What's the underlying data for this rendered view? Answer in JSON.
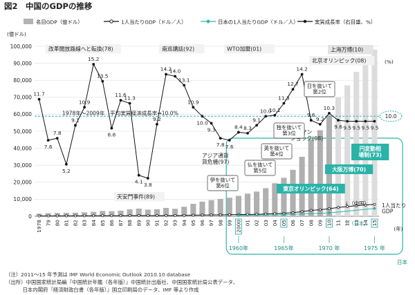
{
  "figure": {
    "label": "図2",
    "title": "中国のGDPの推移"
  },
  "legend": {
    "bar": "名目GDP（億ドル）",
    "per_capita_china": "1人当たりGDP（ドル／人）",
    "per_capita_japan": "日本の1人当たりGDP（ドル／人）",
    "growth": "実質成長率（右目盛、%）"
  },
  "chart_data": {
    "type": "bar+line",
    "x_years": [
      "1978",
      "79",
      "80",
      "81",
      "82",
      "83",
      "84",
      "85",
      "86",
      "87",
      "88",
      "89",
      "90",
      "91",
      "92",
      "93",
      "94",
      "95",
      "96",
      "97",
      "98",
      "99",
      "2000",
      "01",
      "02",
      "03",
      "04",
      "05",
      "06",
      "07",
      "08",
      "09",
      "10",
      "11",
      "12",
      "13",
      "14",
      "15"
    ],
    "y_left": {
      "label": "(億ドル)",
      "min": 0,
      "max": 100000,
      "ticks": [
        0,
        10000,
        20000,
        30000,
        40000,
        50000,
        60000,
        70000,
        80000,
        90000,
        100000
      ],
      "tick_labels": [
        "0",
        "10,000",
        "20,000",
        "30,000",
        "40,000",
        "50,000",
        "60,000",
        "70,000",
        "80,000",
        "90,000",
        "100,000"
      ]
    },
    "y_right": {
      "label": "(%)",
      "min": 0,
      "max": 17
    },
    "x_axis_unit": "(年)",
    "series": [
      {
        "name": "名目GDP（億ドル）",
        "kind": "bar",
        "values": [
          1500,
          1800,
          1900,
          2000,
          2050,
          2300,
          2600,
          3100,
          2980,
          3250,
          4050,
          4500,
          3900,
          4100,
          4900,
          4400,
          5600,
          7300,
          8600,
          9500,
          10200,
          10900,
          12000,
          13300,
          14500,
          16500,
          19400,
          22600,
          27300,
          35000,
          45200,
          50600,
          59300,
          70000,
          77000,
          85000,
          91000,
          98000
        ]
      },
      {
        "name": "1人当たりGDP（ドル／人）",
        "kind": "line",
        "values": [
          160,
          180,
          200,
          200,
          210,
          230,
          260,
          300,
          290,
          310,
          370,
          410,
          350,
          360,
          420,
          380,
          470,
          610,
          710,
          780,
          830,
          880,
          960,
          1050,
          1140,
          1290,
          1510,
          1750,
          2100,
          2690,
          3460,
          3840,
          4430,
          5200,
          5700,
          6200,
          6600,
          7000
        ]
      },
      {
        "name": "実質成長率（右目盛、%）",
        "kind": "line",
        "values": [
          11.7,
          7.6,
          7.8,
          5.2,
          9.1,
          10.9,
          15.2,
          13.5,
          8.8,
          11.6,
          11.3,
          4.1,
          3.8,
          9.2,
          14.2,
          14.0,
          13.1,
          10.9,
          10.0,
          9.3,
          7.8,
          7.6,
          8.4,
          8.3,
          9.1,
          10.0,
          10.1,
          11.3,
          12.7,
          14.2,
          9.6,
          9.2,
          10.3,
          9.6,
          9.5,
          9.5,
          9.5,
          9.5
        ],
        "labels": [
          "11.7",
          "7.6",
          "7.8",
          "5.2",
          "9.1",
          "10.9",
          "15.2",
          "13.5",
          "8.8",
          "11.6",
          "11.3",
          "4.1",
          "3.8",
          "9.2",
          "14.2",
          "14.0",
          "13.1",
          "10.9",
          "10.0",
          "9.3",
          "7.8",
          "7.6",
          "8.4",
          "8.3",
          "9.1",
          "10.0",
          "10.1",
          "11.3",
          "12.7",
          "14.2",
          "9.6",
          "9.2",
          "10.3",
          "9.6",
          "9.5",
          "9.5",
          "9.5",
          "9.5"
        ]
      }
    ],
    "japan": {
      "name": "日本の1人当たりGDP（ドル／人）",
      "x_years": [
        "1960年",
        "1965年",
        "1970 年",
        "1975 年"
      ],
      "values": [
        480,
        920,
        1970,
        4600
      ],
      "label": "日本"
    },
    "average_line": {
      "value": 10.0,
      "label": "1978年～2009年　平均実質経済成長率⇒10.0%",
      "badge": "10.0"
    },
    "annotations": {
      "events": [
        {
          "year": "78",
          "text": "改革開放路線へと転換(78)"
        },
        {
          "year": "92",
          "text": "南巡講話(92)"
        },
        {
          "year": "01",
          "text": "WTO加盟(01)"
        },
        {
          "year": "10",
          "text": "上海万博(10)"
        },
        {
          "year": "08",
          "text": "北京オリンピック(08)"
        },
        {
          "year": "89",
          "text": "天安門事件(89)"
        },
        {
          "year": "97",
          "text": "アジア通貨\n貨危機(97)"
        },
        {
          "year": "08",
          "text": "リーマン\nショック(08)"
        }
      ],
      "overtakes": [
        {
          "year": "00",
          "text": "伊を抜いて\n第6位"
        },
        {
          "year": "05",
          "text": "仏を抜いて\n第5位"
        },
        {
          "year": "06",
          "text": "英を抜いて\n第4位"
        },
        {
          "year": "07",
          "text": "独を抜いて\n第3位"
        },
        {
          "year": "10",
          "text": "日を抜いて\n第2位"
        }
      ],
      "japan_events": [
        {
          "text": "東京オリンピック(64)"
        },
        {
          "text": "大阪万博(70)"
        },
        {
          "text": "円変動相\n場制(73)"
        }
      ],
      "end_label": "1人当たり\nGDP",
      "china_marker": "↓（中国）",
      "japan_marker": "↑（日本）",
      "japan_group": "日本"
    },
    "highlight_years": [
      "2000",
      "05",
      "10",
      "15"
    ]
  },
  "notes": [
    "（注）2011～15 年予測は IMF  World Economic Outlook  2010.10  database",
    "（出所）中国国家統計局編『中国統計年鑑（各年版）』中国統計出版社、中国国家統計局公表データ、",
    "　　　  日本内閣府『経済財政白書（各年版）』国立印刷局のデータ、IMF 等より作成"
  ]
}
